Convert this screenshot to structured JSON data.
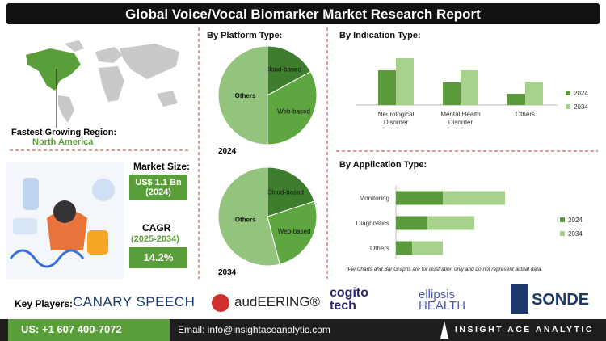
{
  "header": {
    "title": "Global Voice/Vocal Biomarker Market Research Report"
  },
  "region": {
    "label": "Fastest Growing Region:",
    "value": "North America"
  },
  "market_size": {
    "label": "Market Size:",
    "value": "US$ 1.1 Bn",
    "year": "(2024)"
  },
  "cagr": {
    "label": "CAGR",
    "period": "(2025-2034)",
    "value": "14.2%"
  },
  "note": "*Pie Charts and Bar Graphs are for illustration only and do not represent actual data.",
  "key_players": {
    "label": "Key Players:",
    "players": [
      "CANARY SPEECH",
      "audEERING®",
      "cogito tech",
      "ellipsis HEALTH",
      "SONDE"
    ]
  },
  "footer": {
    "phone": "US: +1 607 400-7072",
    "email": "Email: info@insightaceanalytic.com",
    "brand": "INSIGHT ACE ANALYTIC"
  },
  "chart_data": [
    {
      "type": "pie",
      "title": "By Platform Type:",
      "label": "2024",
      "categories": [
        "Cloud-based",
        "Web-based",
        "Others"
      ],
      "values": [
        17,
        33,
        50
      ],
      "colors": [
        "#3f7d2e",
        "#5ea63f",
        "#93c47d"
      ]
    },
    {
      "type": "pie",
      "label": "2034",
      "categories": [
        "Cloud-based",
        "Web-based",
        "Others"
      ],
      "values": [
        20,
        26,
        54
      ],
      "colors": [
        "#3f7d2e",
        "#5ea63f",
        "#93c47d"
      ]
    },
    {
      "type": "bar",
      "title": "By  Indication Type:",
      "categories": [
        "Neurological Disorder",
        "Mental Health Disorder",
        "Others"
      ],
      "series": [
        {
          "name": "2024",
          "color": "#5a9a3c",
          "values": [
            43,
            28,
            14
          ]
        },
        {
          "name": "2034",
          "color": "#a9d18e",
          "values": [
            58,
            43,
            29
          ]
        }
      ]
    },
    {
      "type": "hbar",
      "title": "By Application Type:",
      "categories": [
        "Monitoring",
        "Diagnostics",
        "Others"
      ],
      "series": [
        {
          "name": "2024",
          "color": "#5a9a3c",
          "values": [
            58,
            39,
            20
          ]
        },
        {
          "name": "2034",
          "color": "#a9d18e",
          "values": [
            77,
            58,
            38
          ]
        }
      ]
    }
  ]
}
